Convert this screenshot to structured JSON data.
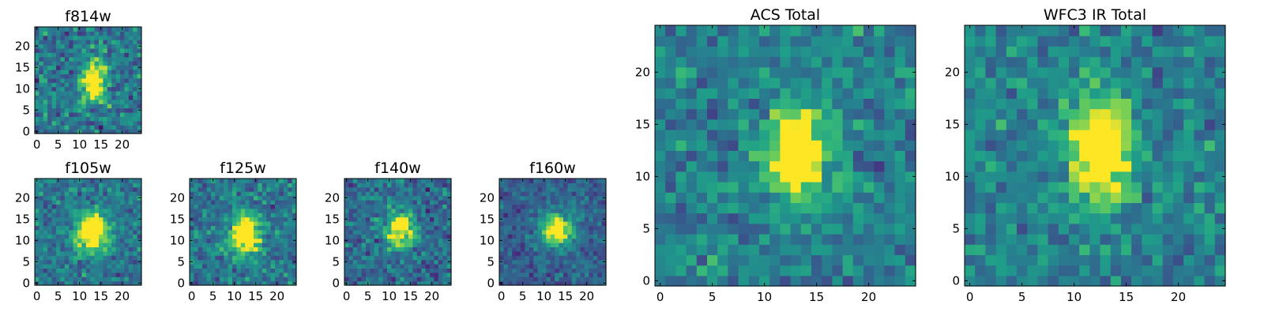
{
  "chart_data": {
    "type": "heatmap",
    "colormap": "viridis",
    "grid": false,
    "panels": [
      {
        "title": "f814w",
        "xlim": [
          0,
          24
        ],
        "ylim": [
          0,
          24
        ],
        "xticks": [
          0,
          5,
          10,
          15,
          20
        ],
        "yticks": [
          0,
          5,
          10,
          15,
          20
        ],
        "source": {
          "cx": 13.5,
          "cy": 12.0,
          "sx": 2.0,
          "sy": 3.2,
          "amp": 0.85
        },
        "noise": 0.28,
        "background": 0.45,
        "seed": 11
      },
      {
        "title": "f105w",
        "xlim": [
          0,
          24
        ],
        "ylim": [
          0,
          24
        ],
        "xticks": [
          0,
          5,
          10,
          15,
          20
        ],
        "yticks": [
          0,
          5,
          10,
          15,
          20
        ],
        "source": {
          "cx": 13.0,
          "cy": 12.0,
          "sx": 2.6,
          "sy": 3.2,
          "amp": 0.9
        },
        "noise": 0.22,
        "background": 0.45,
        "seed": 23
      },
      {
        "title": "f125w",
        "xlim": [
          0,
          24
        ],
        "ylim": [
          0,
          24
        ],
        "xticks": [
          0,
          5,
          10,
          15,
          20
        ],
        "yticks": [
          0,
          5,
          10,
          15,
          20
        ],
        "source": {
          "cx": 12.5,
          "cy": 11.5,
          "sx": 2.4,
          "sy": 3.4,
          "amp": 0.85
        },
        "noise": 0.24,
        "background": 0.45,
        "seed": 37
      },
      {
        "title": "f140w",
        "xlim": [
          0,
          24
        ],
        "ylim": [
          0,
          24
        ],
        "xticks": [
          0,
          5,
          10,
          15,
          20
        ],
        "yticks": [
          0,
          5,
          10,
          15,
          20
        ],
        "source": {
          "cx": 12.5,
          "cy": 12.5,
          "sx": 2.4,
          "sy": 2.8,
          "amp": 0.8
        },
        "noise": 0.24,
        "background": 0.4,
        "seed": 41
      },
      {
        "title": "f160w",
        "xlim": [
          0,
          24
        ],
        "ylim": [
          0,
          24
        ],
        "xticks": [
          0,
          5,
          10,
          15,
          20
        ],
        "yticks": [
          0,
          5,
          10,
          15,
          20
        ],
        "source": {
          "cx": 13.0,
          "cy": 12.5,
          "sx": 2.6,
          "sy": 2.6,
          "amp": 0.85
        },
        "noise": 0.18,
        "background": 0.35,
        "seed": 53
      },
      {
        "title": "ACS Total",
        "xlim": [
          0,
          24
        ],
        "ylim": [
          0,
          24
        ],
        "xticks": [
          0,
          5,
          10,
          15,
          20
        ],
        "yticks": [
          0,
          5,
          10,
          15,
          20
        ],
        "source": {
          "cx": 13.0,
          "cy": 12.5,
          "sx": 2.0,
          "sy": 3.0,
          "amp": 0.85
        },
        "noise": 0.22,
        "background": 0.5,
        "seed": 67
      },
      {
        "title": "WFC3 IR Total",
        "xlim": [
          0,
          24
        ],
        "ylim": [
          0,
          24
        ],
        "xticks": [
          0,
          5,
          10,
          15,
          20
        ],
        "yticks": [
          0,
          5,
          10,
          15,
          20
        ],
        "source": {
          "cx": 12.5,
          "cy": 12.5,
          "sx": 2.0,
          "sy": 3.4,
          "amp": 0.85
        },
        "noise": 0.22,
        "background": 0.5,
        "seed": 79
      }
    ]
  }
}
